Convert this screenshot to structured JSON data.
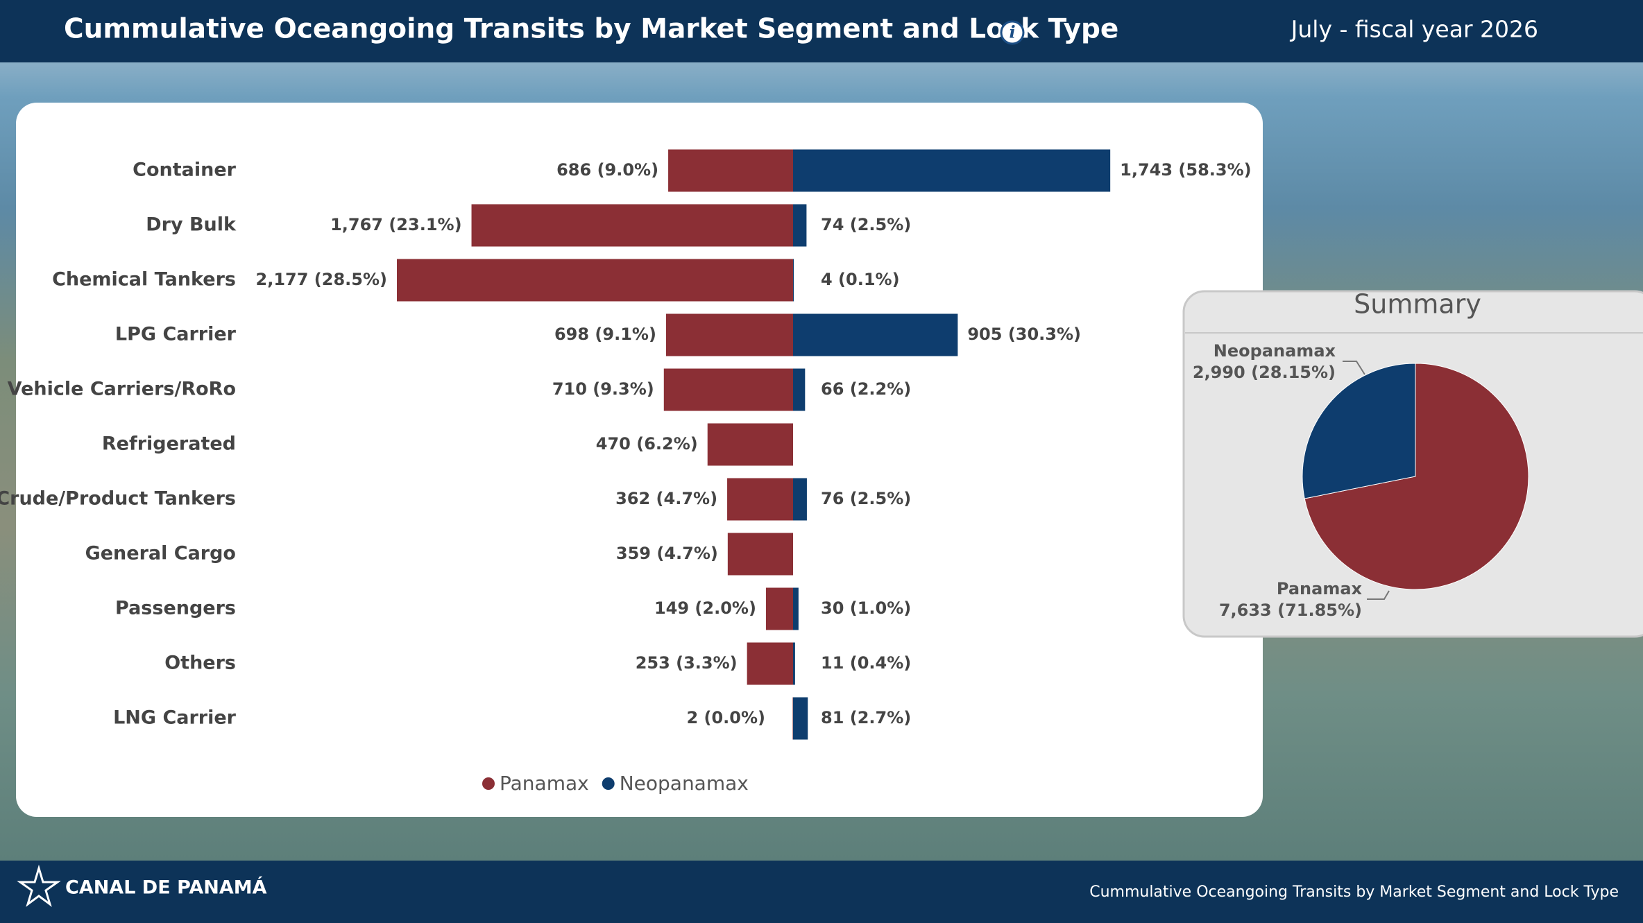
{
  "header": {
    "title": "Cummulative Oceangoing Transits by Market Segment and Lock Type",
    "period": "July - fiscal year 2026"
  },
  "footer": {
    "brand": "CANAL DE PANAMÁ",
    "caption": "Cummulative Oceangoing Transits by Market Segment and Lock Type"
  },
  "chart_data": [
    {
      "type": "bar",
      "categories": [
        "Container",
        "Dry Bulk",
        "Chemical Tankers",
        "LPG Carrier",
        "Vehicle Carriers/RoRo",
        "Refrigerated",
        "Crude/Product Tankers",
        "General Cargo",
        "Passengers",
        "Others",
        "LNG Carrier"
      ],
      "series": [
        {
          "name": "Panamax",
          "color": "#8b2f35",
          "values": [
            686,
            1767,
            2177,
            698,
            710,
            470,
            362,
            359,
            149,
            253,
            2
          ],
          "value_labels": [
            "686 (9.0%)",
            "1,767 (23.1%)",
            "2,177 (28.5%)",
            "698 (9.1%)",
            "710 (9.3%)",
            "470 (6.2%)",
            "362 (4.7%)",
            "359 (4.7%)",
            "149 (2.0%)",
            "253 (3.3%)",
            "2 (0.0%)"
          ]
        },
        {
          "name": "Neopanamax",
          "color": "#0e3d6e",
          "values": [
            1743,
            74,
            4,
            905,
            66,
            null,
            76,
            null,
            30,
            11,
            81
          ],
          "value_labels": [
            "1,743 (58.3%)",
            "74 (2.5%)",
            "4 (0.1%)",
            "905 (30.3%)",
            "66 (2.2%)",
            null,
            "76 (2.5%)",
            null,
            "30 (1.0%)",
            "11 (0.4%)",
            "81 (2.7%)"
          ]
        }
      ]
    },
    {
      "type": "pie",
      "title": "Summary",
      "categories": [
        "Panamax",
        "Neopanamax"
      ],
      "values": [
        7633,
        2990
      ],
      "value_labels": [
        "7,633 (71.85%)",
        "2,990 (28.15%)"
      ],
      "colors": [
        "#8b2f35",
        "#0e3d6e"
      ]
    }
  ]
}
